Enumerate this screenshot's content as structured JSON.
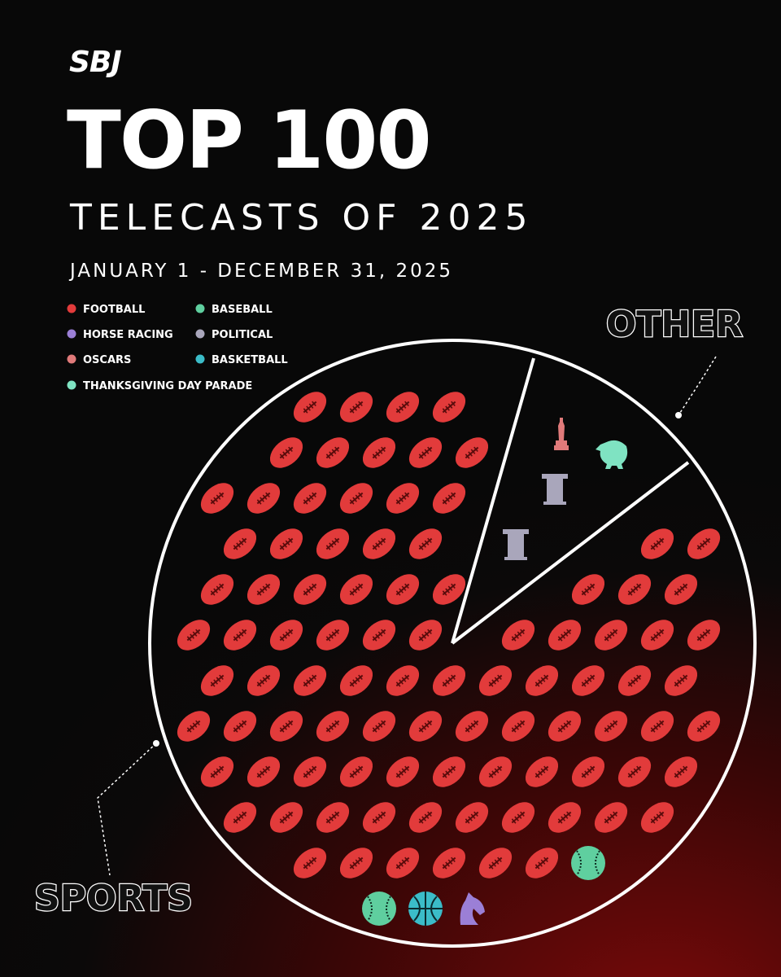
{
  "brand": "SBJ",
  "title": "TOP 100",
  "subtitle": "TELECASTS OF 2025",
  "date_range": "JANUARY 1 - DECEMBER 31, 2025",
  "chart_data": {
    "type": "unit-pie",
    "slices": [
      {
        "label": "SPORTS",
        "series": [
          {
            "name": "FOOTBALL",
            "color": "#e23b3b",
            "value": 92
          },
          {
            "name": "BASEBALL",
            "color": "#5fcf9f",
            "value": 2
          },
          {
            "name": "BASKETBALL",
            "color": "#3bbcc8",
            "value": 1
          },
          {
            "name": "HORSE RACING",
            "color": "#9b7fd6",
            "value": 1
          }
        ]
      },
      {
        "label": "OTHER",
        "series": [
          {
            "name": "POLITICAL",
            "color": "#a9a6bb",
            "value": 2
          },
          {
            "name": "OSCARS",
            "color": "#e07a7a",
            "value": 1
          },
          {
            "name": "THANKSGIVING DAY PARADE",
            "color": "#7fe3c2",
            "value": 1
          }
        ]
      }
    ]
  }
}
